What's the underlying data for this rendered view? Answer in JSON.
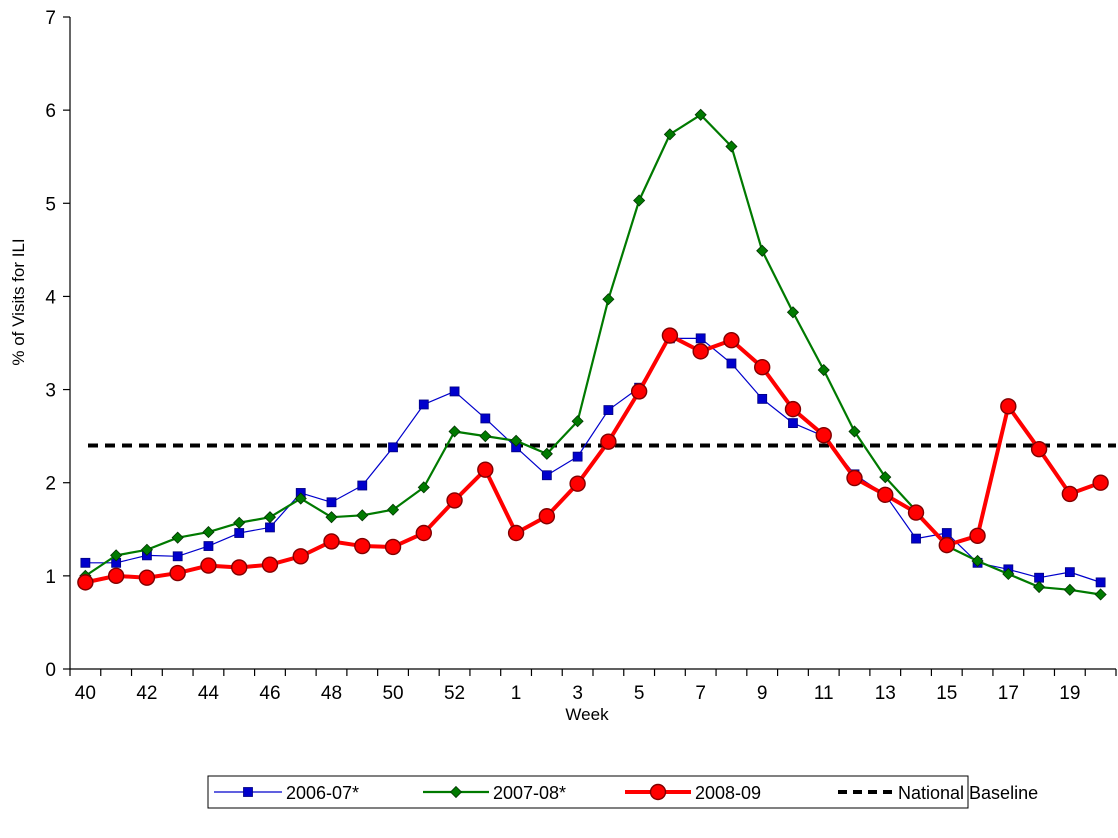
{
  "chart_data": {
    "type": "line",
    "title": "",
    "xlabel": "Week",
    "ylabel": "% of Visits for ILI",
    "ylim": [
      0,
      7
    ],
    "yticks": [
      0,
      1,
      2,
      3,
      4,
      5,
      6,
      7
    ],
    "categories": [
      "40",
      "41",
      "42",
      "43",
      "44",
      "45",
      "46",
      "47",
      "48",
      "49",
      "50",
      "51",
      "52",
      "53",
      "1",
      "2",
      "3",
      "4",
      "5",
      "6",
      "7",
      "8",
      "9",
      "10",
      "11",
      "12",
      "13",
      "14",
      "15",
      "16",
      "17",
      "18",
      "19",
      "20"
    ],
    "xtick_labels_shown": [
      "40",
      "42",
      "44",
      "46",
      "48",
      "50",
      "52",
      "1",
      "3",
      "5",
      "7",
      "9",
      "11",
      "13",
      "15",
      "17",
      "19"
    ],
    "legend_position": "bottom",
    "grid": false,
    "series": [
      {
        "name": "2006-07*",
        "color": "#0000CC",
        "marker": "square",
        "values": [
          1.14,
          1.14,
          1.22,
          1.21,
          1.32,
          1.46,
          1.52,
          1.89,
          1.79,
          1.97,
          2.38,
          2.84,
          2.98,
          2.69,
          2.38,
          2.08,
          2.28,
          2.78,
          3.02,
          3.55,
          3.55,
          3.28,
          2.9,
          2.64,
          2.5,
          2.09,
          1.87,
          1.4,
          1.46,
          1.14,
          1.07,
          0.98,
          1.04,
          0.93
        ]
      },
      {
        "name": "2007-08*",
        "color": "#007A00",
        "marker": "diamond",
        "values": [
          1.0,
          1.22,
          1.28,
          1.41,
          1.47,
          1.57,
          1.63,
          1.83,
          1.63,
          1.65,
          1.71,
          1.95,
          2.55,
          2.5,
          2.45,
          2.31,
          2.66,
          3.97,
          5.03,
          5.74,
          5.95,
          5.61,
          4.49,
          3.83,
          3.21,
          2.55,
          2.06,
          1.7,
          1.32,
          1.16,
          1.02,
          0.88,
          0.85,
          0.8
        ]
      },
      {
        "name": "2008-09",
        "color": "#FF0000",
        "marker": "circle",
        "values": [
          0.93,
          1.0,
          0.98,
          1.03,
          1.11,
          1.09,
          1.12,
          1.21,
          1.37,
          1.32,
          1.31,
          1.46,
          1.81,
          2.14,
          1.46,
          1.64,
          1.99,
          2.44,
          2.98,
          3.58,
          3.41,
          3.53,
          3.24,
          2.79,
          2.51,
          2.05,
          1.87,
          1.68,
          1.33,
          1.43,
          2.82,
          2.36,
          1.88,
          2.0
        ]
      }
    ],
    "baseline": {
      "name": "National Baseline",
      "value": 2.4,
      "color": "#000000",
      "style": "dashed"
    }
  }
}
